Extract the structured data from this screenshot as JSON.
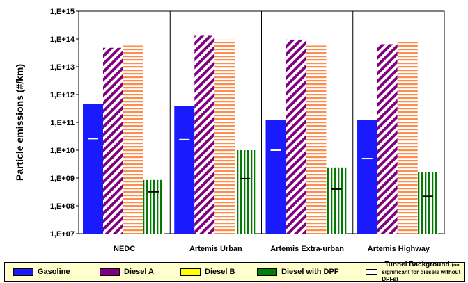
{
  "chart_data": {
    "type": "bar",
    "ylabel": "Particle emissions (#/km)",
    "yscale": "log",
    "ylim": [
      10000000.0,
      1000000000000000.0
    ],
    "yticks": [
      "1,E+07",
      "1,E+08",
      "1,E+09",
      "1,E+10",
      "1,E+11",
      "1,E+12",
      "1,E+13",
      "1,E+14",
      "1,E+15"
    ],
    "categories": [
      "NEDC",
      "Artemis Urban",
      "Artemis Extra-urban",
      "Artemis Highway"
    ],
    "series": [
      {
        "name": "Gasoline",
        "color": "#1a1aff",
        "pattern": "solid",
        "values": [
          450000000000.0,
          380000000000.0,
          120000000000.0,
          125000000000.0
        ]
      },
      {
        "name": "Diesel A",
        "color": "#800080",
        "pattern": "diagonal-stripes",
        "values": [
          48000000000000.0,
          130000000000000.0,
          95000000000000.0,
          65000000000000.0
        ]
      },
      {
        "name": "Diesel B",
        "color": "#ff8c4a",
        "pattern": "horizontal-stripes",
        "values": [
          58000000000000.0,
          95000000000000.0,
          58000000000000.0,
          80000000000000.0
        ]
      },
      {
        "name": "Diesel with DPF",
        "color": "#007a00",
        "pattern": "vertical-stripes",
        "values": [
          850000000.0,
          10000000000.0,
          2400000000.0,
          1600000000.0
        ]
      }
    ],
    "tunnel_background": {
      "name": "Tunnel Background",
      "note_line1": "(not",
      "note_line2": "significant for diesels without DPFs)",
      "values": [
        26000000000.0,
        24000000000.0,
        10000000000.0,
        5000000000.0
      ],
      "dpf_values": [
        320000000.0,
        950000000.0,
        400000000.0,
        220000000.0
      ]
    },
    "grid": false,
    "legend_position": "bottom"
  },
  "legend": {
    "gasoline": "Gasoline",
    "diesel_a": "Diesel A",
    "diesel_b": "Diesel B",
    "diesel_dpf": "Diesel with DPF",
    "tunnel": "Tunnel Background",
    "tunnel_note1": "(not",
    "tunnel_note2": "significant for diesels without DPFs)"
  },
  "legend_colors": {
    "gasoline": "#1a1aff",
    "diesel_a": "#800080",
    "diesel_b": "#ffff00",
    "diesel_dpf": "#008000",
    "tunnel": "#ffffff"
  }
}
